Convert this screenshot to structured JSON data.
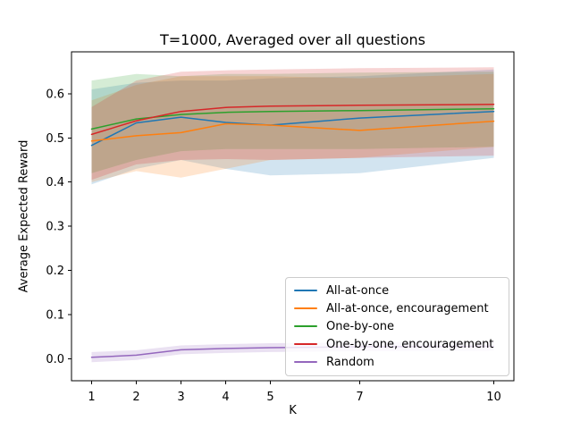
{
  "figure": {
    "title": "T=1000, Averaged over all questions",
    "xlabel": "K",
    "ylabel": "Average Expected Reward"
  },
  "chart_data": {
    "type": "line",
    "title": "T=1000, Averaged over all questions",
    "xlabel": "K",
    "ylabel": "Average Expected Reward",
    "x": [
      1,
      2,
      3,
      4,
      5,
      7,
      10
    ],
    "xticks": [
      1,
      2,
      3,
      4,
      5,
      7,
      10
    ],
    "yticks": [
      0.0,
      0.1,
      0.2,
      0.3,
      0.4,
      0.5,
      0.6
    ],
    "xlim": [
      0.55,
      10.45
    ],
    "ylim": [
      -0.05,
      0.695
    ],
    "grid": false,
    "legend_position": "lower right",
    "band_alpha": 0.2,
    "series": [
      {
        "name": "All-at-once",
        "color": "#1f77b4",
        "values": [
          0.483,
          0.534,
          0.547,
          0.535,
          0.529,
          0.545,
          0.56
        ],
        "band_lower": [
          0.395,
          0.43,
          0.45,
          0.43,
          0.415,
          0.42,
          0.455
        ],
        "band_upper": [
          0.61,
          0.625,
          0.63,
          0.63,
          0.635,
          0.64,
          0.655
        ]
      },
      {
        "name": "All-at-once, encouragement",
        "color": "#ff7f0e",
        "values": [
          0.493,
          0.505,
          0.512,
          0.532,
          0.529,
          0.517,
          0.538
        ],
        "band_lower": [
          0.4,
          0.425,
          0.41,
          0.43,
          0.45,
          0.455,
          0.48
        ],
        "band_upper": [
          0.585,
          0.62,
          0.64,
          0.64,
          0.64,
          0.635,
          0.645
        ]
      },
      {
        "name": "One-by-one",
        "color": "#2ca02c",
        "values": [
          0.52,
          0.543,
          0.553,
          0.558,
          0.56,
          0.562,
          0.566
        ],
        "band_lower": [
          0.42,
          0.45,
          0.47,
          0.475,
          0.475,
          0.475,
          0.48
        ],
        "band_upper": [
          0.63,
          0.645,
          0.64,
          0.645,
          0.645,
          0.648,
          0.65
        ]
      },
      {
        "name": "One-by-one, encouragement",
        "color": "#d62728",
        "values": [
          0.508,
          0.539,
          0.56,
          0.569,
          0.572,
          0.574,
          0.576
        ],
        "band_lower": [
          0.405,
          0.44,
          0.45,
          0.452,
          0.45,
          0.455,
          0.46
        ],
        "band_upper": [
          0.57,
          0.63,
          0.65,
          0.653,
          0.655,
          0.658,
          0.66
        ]
      },
      {
        "name": "Random",
        "color": "#9467bd",
        "values": [
          0.003,
          0.008,
          0.02,
          0.023,
          0.025,
          0.027,
          0.028
        ],
        "band_lower": [
          -0.008,
          -0.003,
          0.01,
          0.013,
          0.015,
          0.017,
          0.018
        ],
        "band_upper": [
          0.015,
          0.019,
          0.03,
          0.033,
          0.035,
          0.037,
          0.038
        ]
      }
    ]
  }
}
